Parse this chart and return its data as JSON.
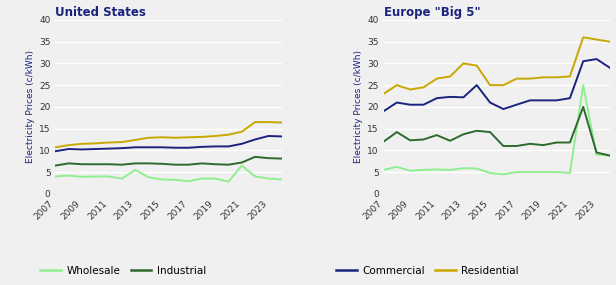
{
  "years": [
    2007,
    2008,
    2009,
    2010,
    2011,
    2012,
    2013,
    2014,
    2015,
    2016,
    2017,
    2018,
    2019,
    2020,
    2021,
    2022,
    2023,
    2024
  ],
  "us_wholesale": [
    4.0,
    4.2,
    3.9,
    4.0,
    4.0,
    3.5,
    5.5,
    3.8,
    3.3,
    3.2,
    2.9,
    3.5,
    3.5,
    2.8,
    6.5,
    4.0,
    3.5,
    3.3
  ],
  "us_industrial": [
    6.5,
    7.0,
    6.8,
    6.8,
    6.8,
    6.7,
    7.0,
    7.0,
    6.9,
    6.7,
    6.7,
    7.0,
    6.8,
    6.7,
    7.2,
    8.5,
    8.2,
    8.1
  ],
  "us_commercial": [
    9.8,
    10.3,
    10.2,
    10.3,
    10.4,
    10.5,
    10.7,
    10.7,
    10.7,
    10.6,
    10.6,
    10.8,
    10.9,
    10.9,
    11.5,
    12.5,
    13.3,
    13.2
  ],
  "us_residential": [
    10.7,
    11.2,
    11.5,
    11.6,
    11.8,
    11.9,
    12.4,
    12.9,
    13.0,
    12.9,
    13.0,
    13.1,
    13.3,
    13.6,
    14.3,
    16.5,
    16.5,
    16.4
  ],
  "eu_wholesale": [
    5.5,
    6.2,
    5.3,
    5.5,
    5.6,
    5.5,
    5.9,
    5.8,
    4.8,
    4.5,
    5.0,
    5.0,
    5.0,
    5.0,
    4.8,
    25.0,
    9.0,
    8.8
  ],
  "eu_industrial": [
    12.0,
    14.2,
    12.3,
    12.5,
    13.5,
    12.2,
    13.7,
    14.5,
    14.2,
    11.0,
    11.0,
    11.5,
    11.2,
    11.8,
    11.8,
    20.0,
    9.5,
    8.8
  ],
  "eu_commercial": [
    19.0,
    21.0,
    20.5,
    20.5,
    22.0,
    22.3,
    22.2,
    25.0,
    21.0,
    19.5,
    20.5,
    21.5,
    21.5,
    21.5,
    22.0,
    30.5,
    31.0,
    29.0
  ],
  "eu_residential": [
    23.0,
    25.0,
    24.0,
    24.5,
    26.5,
    27.0,
    30.0,
    29.5,
    25.0,
    25.0,
    26.5,
    26.5,
    26.8,
    26.8,
    27.0,
    36.0,
    35.5,
    35.0
  ],
  "color_wholesale": "#90EE90",
  "color_industrial": "#2d6a2d",
  "color_commercial": "#1a237e",
  "color_residential": "#c8a800",
  "ylabel": "Electricity Prices (c/kWh)",
  "title_us": "United States",
  "title_eu": "Europe \"Big 5\"",
  "ylim": [
    0,
    40
  ],
  "yticks": [
    0,
    5,
    10,
    15,
    20,
    25,
    30,
    35,
    40
  ],
  "xtick_years": [
    2007,
    2009,
    2011,
    2013,
    2015,
    2017,
    2019,
    2021,
    2023
  ],
  "background_color": "#f0f0f0",
  "grid_color": "#ffffff",
  "tick_color": "#333333",
  "title_color": "#1a237e",
  "legend_labels_left": [
    "Wholesale",
    "Industrial"
  ],
  "legend_labels_right": [
    "Commercial",
    "Residential"
  ]
}
